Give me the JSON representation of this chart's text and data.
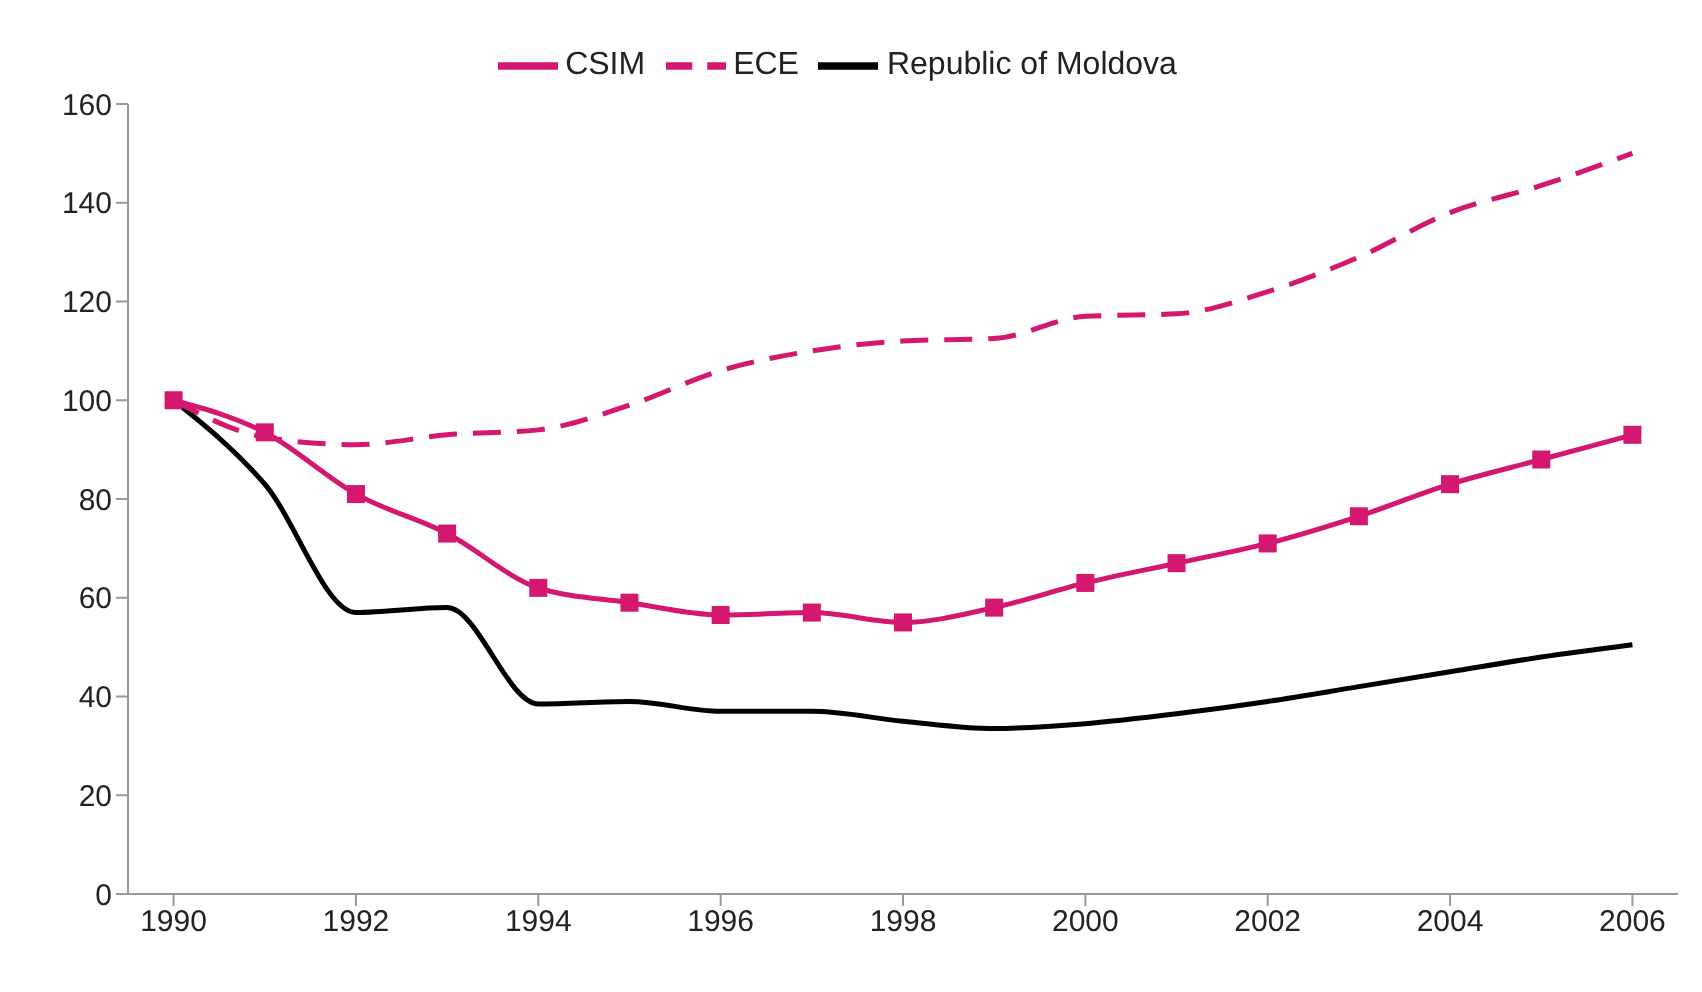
{
  "chart_data": {
    "type": "line",
    "x": [
      1990,
      1991,
      1992,
      1993,
      1994,
      1995,
      1996,
      1997,
      1998,
      1999,
      2000,
      2001,
      2002,
      2003,
      2004,
      2005,
      2006
    ],
    "series": [
      {
        "name": "Republic of Moldova",
        "color": "#000000",
        "marker": "none",
        "line_style": "solid",
        "values": [
          100,
          83,
          57,
          58,
          38.5,
          39,
          37,
          37,
          35,
          33.5,
          34.5,
          36.5,
          39,
          42,
          45,
          48,
          50.5
        ]
      },
      {
        "name": "CSIM",
        "color": "#d4176f",
        "marker": "square",
        "line_style": "solid",
        "values": [
          100,
          93.5,
          81,
          73,
          62,
          59,
          56.5,
          57,
          55,
          58,
          63,
          67,
          71,
          76.5,
          83,
          88,
          93
        ]
      },
      {
        "name": "ECE",
        "color": "#d4176f",
        "marker": "none",
        "line_style": "dashed",
        "values": [
          100,
          92.5,
          91,
          93,
          94,
          99,
          106,
          110,
          112,
          112.5,
          117,
          117.5,
          122,
          129,
          138,
          143.5,
          150
        ]
      }
    ],
    "xlim": [
      1989.5,
      2006.5
    ],
    "xticks": [
      1990,
      1992,
      1994,
      1996,
      1998,
      2000,
      2002,
      2004,
      2006
    ],
    "ylim": [
      0,
      160
    ],
    "yticks": [
      0,
      20,
      40,
      60,
      80,
      100,
      120,
      140,
      160
    ],
    "grid": false,
    "legend": "top"
  }
}
